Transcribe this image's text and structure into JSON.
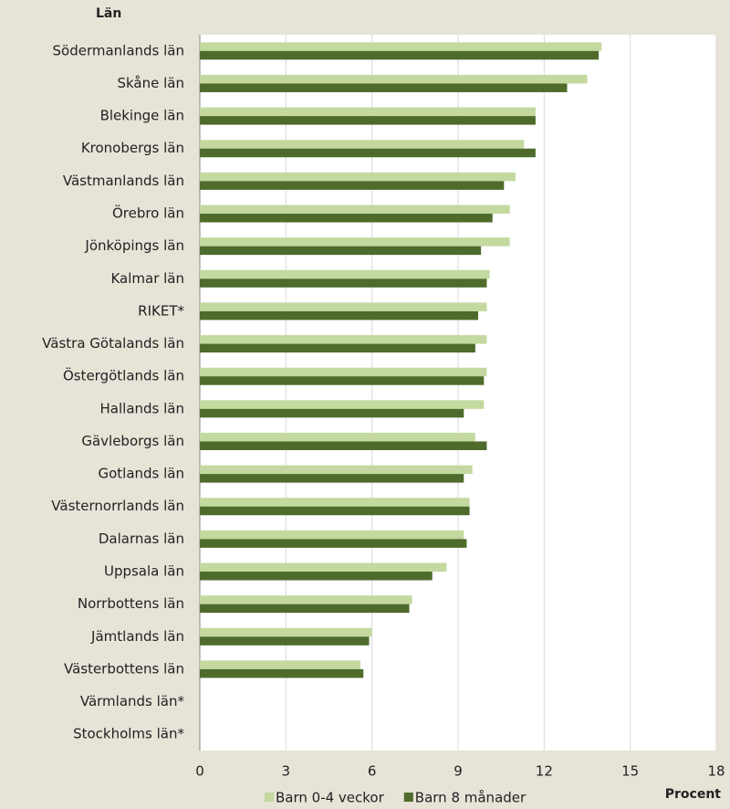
{
  "chart_data": {
    "type": "barh",
    "y_label": "Län",
    "x_label": "Procent",
    "categories": [
      "Södermanlands län",
      "Skåne län",
      "Blekinge län",
      "Kronobergs län",
      "Västmanlands län",
      "Örebro län",
      "Jönköpings län",
      "Kalmar län",
      "RIKET*",
      "Västra Götalands län",
      "Östergötlands län",
      "Hallands län",
      "Gävleborgs län",
      "Gotlands län",
      "Västernorrlands län",
      "Dalarnas län",
      "Uppsala län",
      "Norrbottens län",
      "Jämtlands län",
      "Västerbottens län",
      "Värmlands län*",
      "Stockholms län*"
    ],
    "series": [
      {
        "name": "Barn 0-4 veckor",
        "color": "#c3d9a0",
        "values": [
          14.0,
          13.5,
          11.7,
          11.3,
          11.0,
          10.8,
          10.8,
          10.1,
          10.0,
          10.0,
          10.0,
          9.9,
          9.6,
          9.5,
          9.4,
          9.2,
          8.6,
          7.4,
          6.0,
          5.6,
          null,
          null
        ]
      },
      {
        "name": "Barn 8 månader",
        "color": "#4e6b2b",
        "values": [
          13.9,
          12.8,
          11.7,
          11.7,
          10.6,
          10.2,
          9.8,
          10.0,
          9.7,
          9.6,
          9.9,
          9.2,
          10.0,
          9.2,
          9.4,
          9.3,
          8.1,
          7.3,
          5.9,
          5.7,
          null,
          null
        ]
      }
    ],
    "xlim": [
      0,
      18
    ],
    "xticks": [
      0,
      3,
      6,
      9,
      12,
      15,
      18
    ],
    "grid": true
  }
}
